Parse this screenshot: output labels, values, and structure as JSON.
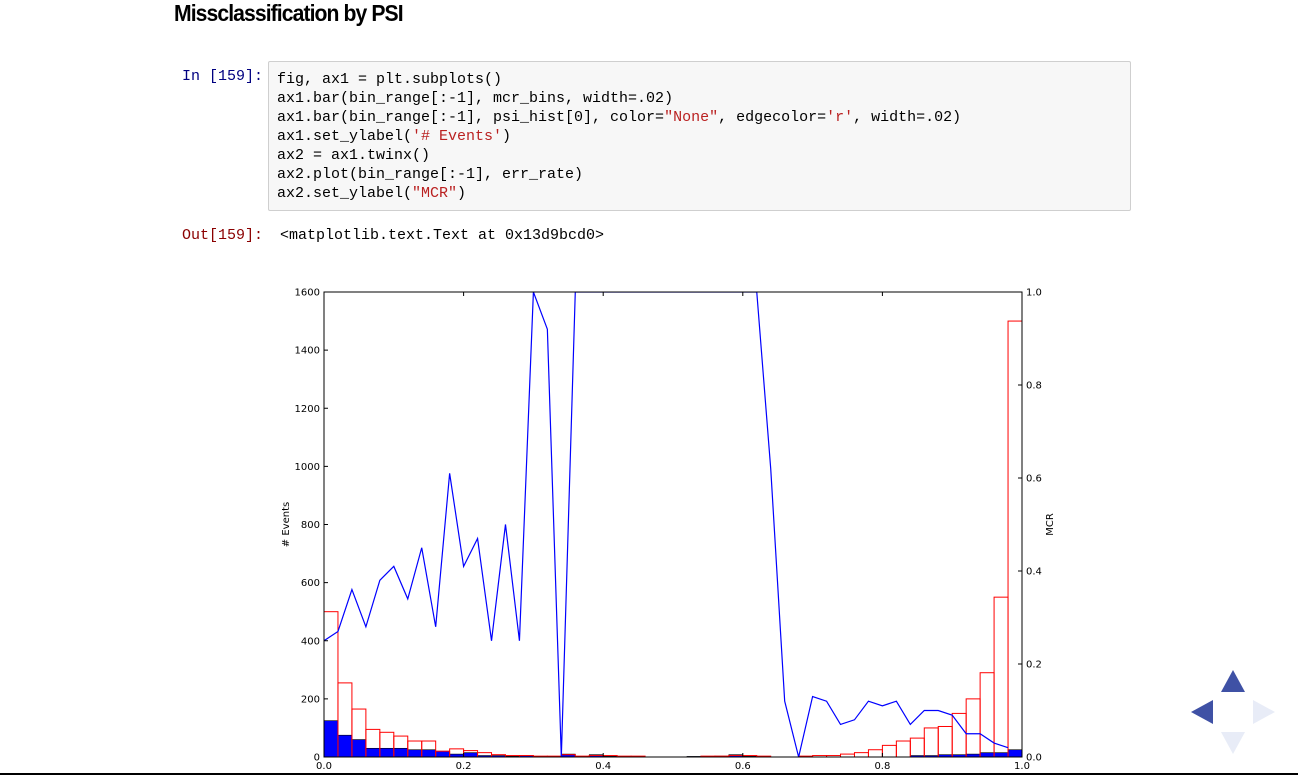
{
  "heading": "Missclassification by PSI",
  "cell": {
    "in_prompt": "In [159]:",
    "code_lines": [
      [
        {
          "t": "fig, ax1 = plt.subplots()",
          "c": ""
        }
      ],
      [
        {
          "t": "ax1.bar(bin_range[:-1], mcr_bins, width=.02)",
          "c": ""
        }
      ],
      [
        {
          "t": "ax1.bar(bin_range[:-1], psi_hist[0], color=",
          "c": ""
        },
        {
          "t": "\"None\"",
          "c": "str"
        },
        {
          "t": ", edgecolor=",
          "c": ""
        },
        {
          "t": "'r'",
          "c": "str"
        },
        {
          "t": ", width=.02)",
          "c": ""
        }
      ],
      [
        {
          "t": "ax1.set_ylabel(",
          "c": ""
        },
        {
          "t": "'# Events'",
          "c": "str"
        },
        {
          "t": ")",
          "c": ""
        }
      ],
      [
        {
          "t": "ax2 = ax1.twinx()",
          "c": ""
        }
      ],
      [
        {
          "t": "ax2.plot(bin_range[:-1], err_rate)",
          "c": ""
        }
      ],
      [
        {
          "t": "ax2.set_ylabel(",
          "c": ""
        },
        {
          "t": "\"MCR\"",
          "c": "str"
        },
        {
          "t": ")",
          "c": ""
        }
      ]
    ],
    "out_prompt": "Out[159]:",
    "out_text": "<matplotlib.text.Text at 0x13d9bcd0>"
  },
  "chart_data": {
    "type": "bar",
    "xlim": [
      0,
      1
    ],
    "ylim_left": [
      0,
      1600
    ],
    "ylim_right": [
      0,
      1
    ],
    "ylabel_left": "# Events",
    "ylabel_right": "MCR",
    "x_ticks": [
      "0.0",
      "0.2",
      "0.4",
      "0.6",
      "0.8",
      "1.0"
    ],
    "y_ticks_left": [
      "0",
      "200",
      "400",
      "600",
      "800",
      "1000",
      "1200",
      "1400",
      "1600"
    ],
    "y_ticks_right": [
      "0.0",
      "0.2",
      "0.4",
      "0.6",
      "0.8",
      "1.0"
    ],
    "bin_width": 0.02,
    "x": [
      0.0,
      0.02,
      0.04,
      0.06,
      0.08,
      0.1,
      0.12,
      0.14,
      0.16,
      0.18,
      0.2,
      0.22,
      0.24,
      0.26,
      0.28,
      0.3,
      0.32,
      0.34,
      0.36,
      0.38,
      0.4,
      0.42,
      0.44,
      0.46,
      0.48,
      0.5,
      0.52,
      0.54,
      0.56,
      0.58,
      0.6,
      0.62,
      0.64,
      0.66,
      0.68,
      0.7,
      0.72,
      0.74,
      0.76,
      0.78,
      0.8,
      0.82,
      0.84,
      0.86,
      0.88,
      0.9,
      0.92,
      0.94,
      0.96,
      0.98
    ],
    "series": [
      {
        "name": "mcr_bins",
        "type": "bar",
        "color": "#0000ff",
        "values": [
          125,
          75,
          60,
          30,
          30,
          30,
          25,
          25,
          20,
          10,
          15,
          5,
          5,
          3,
          5,
          2,
          2,
          10,
          0,
          8,
          3,
          2,
          2,
          0,
          0,
          0,
          2,
          2,
          3,
          8,
          3,
          0,
          0,
          0,
          0,
          0,
          0,
          0,
          0,
          0,
          0,
          0,
          5,
          5,
          8,
          8,
          10,
          15,
          15,
          25
        ]
      },
      {
        "name": "psi_hist[0]",
        "type": "bar",
        "color": "None",
        "edgecolor": "#ff0000",
        "values": [
          500,
          255,
          165,
          95,
          85,
          72,
          55,
          55,
          20,
          28,
          22,
          15,
          8,
          5,
          5,
          3,
          3,
          8,
          3,
          5,
          5,
          3,
          3,
          0,
          0,
          0,
          0,
          3,
          3,
          5,
          5,
          3,
          0,
          0,
          3,
          5,
          5,
          10,
          15,
          25,
          40,
          55,
          65,
          100,
          105,
          150,
          200,
          290,
          550,
          1500
        ]
      },
      {
        "name": "err_rate",
        "type": "line",
        "color": "#0000ff",
        "values": [
          0.25,
          0.27,
          0.36,
          0.28,
          0.38,
          0.41,
          0.34,
          0.45,
          0.28,
          0.61,
          0.41,
          0.47,
          0.25,
          0.5,
          0.25,
          1.0,
          0.92,
          0.0,
          1.0,
          1.0,
          1.0,
          1.0,
          1.0,
          1.0,
          1.0,
          1.0,
          1.0,
          1.0,
          1.0,
          1.0,
          1.0,
          1.0,
          0.62,
          0.12,
          0.0,
          0.13,
          0.12,
          0.07,
          0.08,
          0.12,
          0.11,
          0.12,
          0.07,
          0.1,
          0.1,
          0.09,
          0.05,
          0.05,
          0.03,
          0.02
        ]
      }
    ]
  },
  "nav": {
    "up_icon": "triangle-up",
    "left_icon": "triangle-left",
    "right_icon": "triangle-right",
    "down_icon": "triangle-down",
    "active_color": "#3f51a5",
    "inactive_color": "#e8ecf7"
  }
}
